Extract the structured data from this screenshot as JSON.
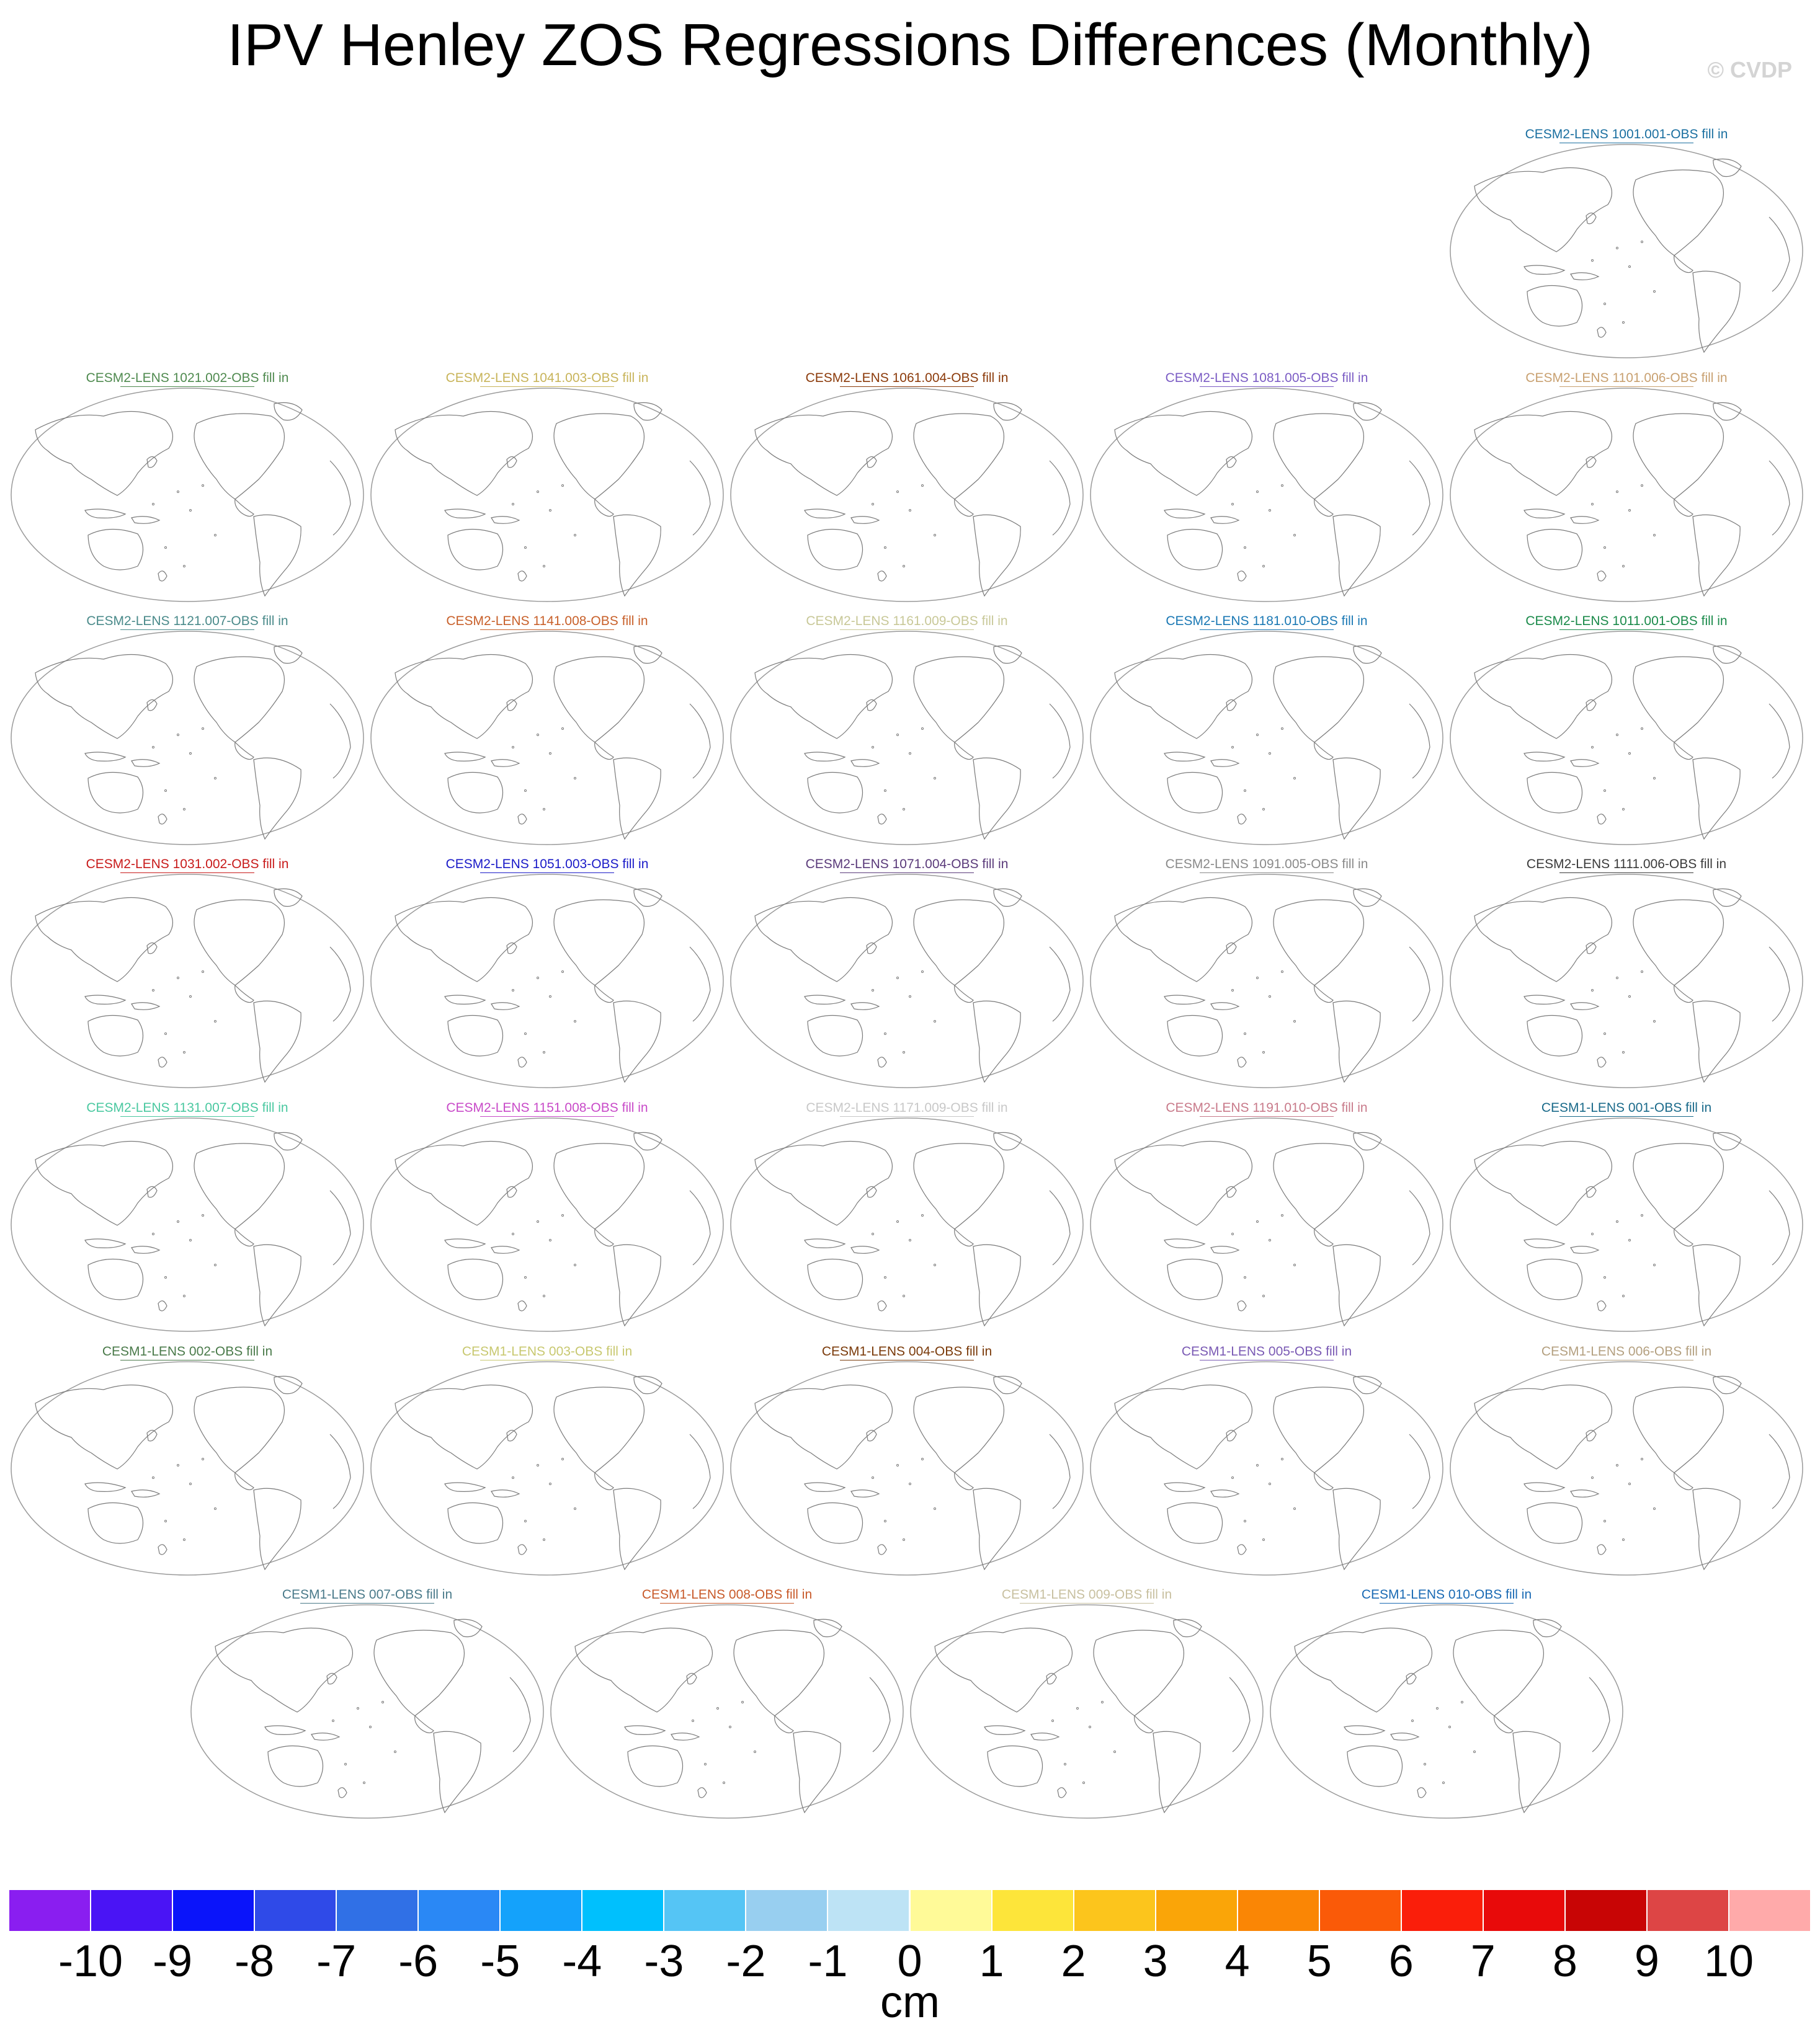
{
  "title": "IPV Henley ZOS Regressions Differences (Monthly)",
  "watermark": "© CVDP",
  "chart_data": {
    "type": "map-panels",
    "projection": "robinson",
    "panels": [
      {
        "name": "CESM2-LENS 1001.001-OBS fill in",
        "color": "#1a6fa0"
      },
      {
        "name": "CESM2-LENS 1021.002-OBS fill in",
        "color": "#4f8a4f"
      },
      {
        "name": "CESM2-LENS 1041.003-OBS fill in",
        "color": "#c8b45a"
      },
      {
        "name": "CESM2-LENS 1061.004-OBS fill in",
        "color": "#8b3a0a"
      },
      {
        "name": "CESM2-LENS 1081.005-OBS fill in",
        "color": "#7b5cc4"
      },
      {
        "name": "CESM2-LENS 1101.006-OBS fill in",
        "color": "#c8a070"
      },
      {
        "name": "CESM2-LENS 1121.007-OBS fill in",
        "color": "#4a8a8a"
      },
      {
        "name": "CESM2-LENS 1141.008-OBS fill in",
        "color": "#c8602a"
      },
      {
        "name": "CESM2-LENS 1161.009-OBS fill in",
        "color": "#c8c898"
      },
      {
        "name": "CESM2-LENS 1181.010-OBS fill in",
        "color": "#1a78b4"
      },
      {
        "name": "CESM2-LENS 1011.001-OBS fill in",
        "color": "#1a8a4a"
      },
      {
        "name": "CESM2-LENS 1031.002-OBS fill in",
        "color": "#c81a1a"
      },
      {
        "name": "CESM2-LENS 1051.003-OBS fill in",
        "color": "#1a1ac8"
      },
      {
        "name": "CESM2-LENS 1071.004-OBS fill in",
        "color": "#5a3a7a"
      },
      {
        "name": "CESM2-LENS 1091.005-OBS fill in",
        "color": "#8a8a8a"
      },
      {
        "name": "CESM2-LENS 1111.006-OBS fill in",
        "color": "#3a3a3a"
      },
      {
        "name": "CESM2-LENS 1131.007-OBS fill in",
        "color": "#4ac8a0"
      },
      {
        "name": "CESM2-LENS 1151.008-OBS fill in",
        "color": "#c84ac8"
      },
      {
        "name": "CESM2-LENS 1171.009-OBS fill in",
        "color": "#c8c8c8"
      },
      {
        "name": "CESM2-LENS 1191.010-OBS fill in",
        "color": "#c87a8a"
      },
      {
        "name": "CESM1-LENS 001-OBS fill in",
        "color": "#1a6a8a"
      },
      {
        "name": "CESM1-LENS 002-OBS fill in",
        "color": "#4a7a4a"
      },
      {
        "name": "CESM1-LENS 003-OBS fill in",
        "color": "#c8c870"
      },
      {
        "name": "CESM1-LENS 004-OBS fill in",
        "color": "#7a3a0a"
      },
      {
        "name": "CESM1-LENS 005-OBS fill in",
        "color": "#7a5ab4"
      },
      {
        "name": "CESM1-LENS 006-OBS fill in",
        "color": "#b4a080"
      },
      {
        "name": "CESM1-LENS 007-OBS fill in",
        "color": "#4a7a8a"
      },
      {
        "name": "CESM1-LENS 008-OBS fill in",
        "color": "#c85a2a"
      },
      {
        "name": "CESM1-LENS 009-OBS fill in",
        "color": "#c8c0a0"
      },
      {
        "name": "CESM1-LENS 010-OBS fill in",
        "color": "#1a6ab4"
      }
    ],
    "colorbar": {
      "unit": "cm",
      "ticks": [
        "-10",
        "-9",
        "-8",
        "-7",
        "-6",
        "-5",
        "-4",
        "-3",
        "-2",
        "-1",
        "0",
        "1",
        "2",
        "3",
        "4",
        "5",
        "6",
        "7",
        "8",
        "9",
        "10"
      ],
      "colors": [
        "#8a1ef0",
        "#4a14f5",
        "#0a14fa",
        "#2f4ae8",
        "#3070e6",
        "#2a88f5",
        "#14a2fb",
        "#00c0fd",
        "#55c5f5",
        "#98cff0",
        "#bde3f5",
        "#fffa98",
        "#fde53a",
        "#fcc51c",
        "#faa508",
        "#fa8605",
        "#fa5a08",
        "#fa1e0a",
        "#e80a0a",
        "#c80505",
        "#dd4545",
        "#ffaaaa"
      ]
    }
  }
}
